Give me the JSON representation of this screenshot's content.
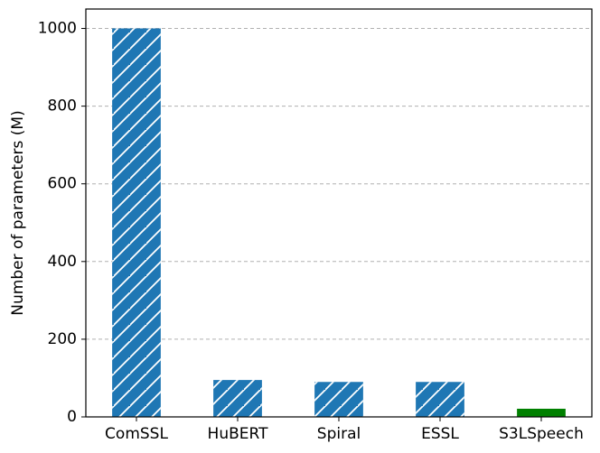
{
  "chart_data": {
    "type": "bar",
    "ylabel": "Number of parameters (M)",
    "categories": [
      "ComSSL",
      "HuBERT",
      "Spiral",
      "ESSL",
      "S3LSpeech"
    ],
    "values": [
      1000,
      95,
      90,
      90,
      21
    ],
    "colors": [
      "#1f77b4",
      "#1f77b4",
      "#1f77b4",
      "#1f77b4",
      "#008000"
    ],
    "hatches": [
      "/",
      "/",
      "/",
      "/",
      ""
    ],
    "ylim": [
      0,
      1050
    ],
    "yticks": [
      0,
      200,
      400,
      600,
      800,
      1000
    ],
    "grid": true
  }
}
